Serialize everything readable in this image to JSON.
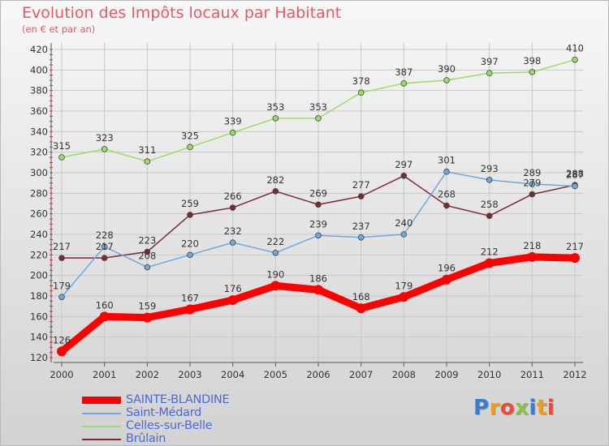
{
  "title": "Evolution des Impôts locaux par Habitant",
  "subtitle": "(en € et par an)",
  "chart_data": {
    "type": "line",
    "title": "Evolution des Impôts locaux par Habitant",
    "subtitle": "(en € et par an)",
    "x": [
      2000,
      2001,
      2002,
      2003,
      2004,
      2005,
      2006,
      2007,
      2008,
      2009,
      2010,
      2011,
      2012
    ],
    "ylim": [
      120,
      420
    ],
    "yticks": [
      120,
      140,
      160,
      180,
      200,
      220,
      240,
      260,
      280,
      300,
      320,
      340,
      360,
      380,
      400,
      420
    ],
    "grid": true,
    "legend_position": "bottom-left",
    "series": [
      {
        "name": "SAINTE-BLANDINE",
        "color": "#ff0000",
        "values": [
          126,
          160,
          159,
          167,
          176,
          190,
          186,
          168,
          179,
          196,
          212,
          218,
          217
        ]
      },
      {
        "name": "Saint-Médard",
        "color": "#6fa8dc",
        "values": [
          179,
          228,
          208,
          220,
          232,
          222,
          239,
          237,
          240,
          301,
          293,
          289,
          287
        ]
      },
      {
        "name": "Celles-sur-Belle",
        "color": "#99dd66",
        "values": [
          315,
          323,
          311,
          325,
          339,
          353,
          353,
          378,
          387,
          390,
          397,
          398,
          410
        ]
      },
      {
        "name": "Brûlain",
        "color": "#7a2a35",
        "values": [
          217,
          217,
          223,
          259,
          266,
          282,
          269,
          277,
          297,
          268,
          258,
          279,
          288
        ]
      }
    ]
  },
  "legend": [
    {
      "label": "SAINTE-BLANDINE",
      "color": "#ff0000"
    },
    {
      "label": "Saint-Médard",
      "color": "#6fa8dc"
    },
    {
      "label": "Celles-sur-Belle",
      "color": "#99dd66"
    },
    {
      "label": "Brûlain",
      "color": "#7a2a35"
    }
  ],
  "logo": {
    "text": "Proxiti",
    "letter_colors": [
      "#3a7bd5",
      "#f39c12",
      "#e74c3c",
      "#8bc34a",
      "#3a7bd5",
      "#f39c12",
      "#e74c3c"
    ]
  }
}
